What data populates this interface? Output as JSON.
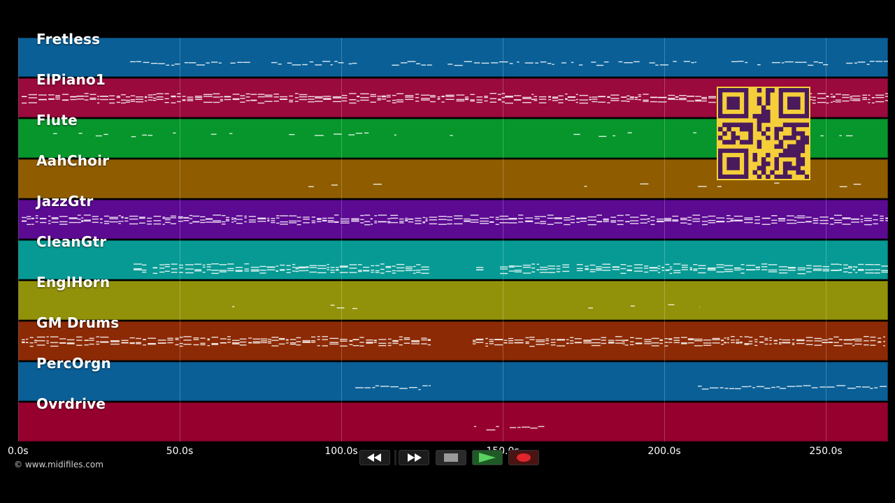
{
  "copyright": "© www.midifiles.com",
  "tracks": [
    {
      "name": "Fretless",
      "color": "#0a5f96"
    },
    {
      "name": "ElPiano1",
      "color": "#9a0a3c"
    },
    {
      "name": "Flute",
      "color": "#06962b"
    },
    {
      "name": "AahChoir",
      "color": "#8f5d00"
    },
    {
      "name": "JazzGtr",
      "color": "#5c0a92"
    },
    {
      "name": "CleanGtr",
      "color": "#079a94"
    },
    {
      "name": "EnglHorn",
      "color": "#92920a"
    },
    {
      "name": "GM Drums",
      "color": "#8c2a05"
    },
    {
      "name": "PercOrgn",
      "color": "#0a5f96"
    },
    {
      "name": "Ovrdrive",
      "color": "#96002f"
    }
  ],
  "timeline": {
    "max_seconds": 269,
    "ticks": [
      "0.0s",
      "50.0s",
      "100.0s",
      "150.0s",
      "200.0s",
      "250.0s"
    ]
  },
  "transport": {
    "rewind": "rewind-icon",
    "fast_forward": "fast-forward-icon",
    "stop": "stop-icon",
    "play": "play-icon",
    "record": "record-icon"
  },
  "qr_code": "qr-code"
}
